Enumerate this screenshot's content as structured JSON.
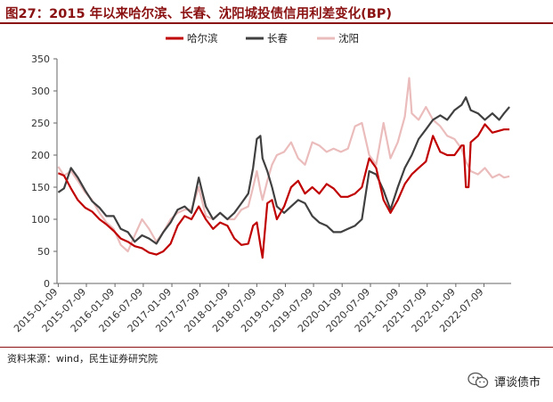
{
  "header": {
    "title": "图27：2015 年以来哈尔滨、长春、沈阳城投债信用利差变化(BP)"
  },
  "footer": {
    "source": "资料来源：wind，民生证券研究院",
    "watermark": "谭谈债市"
  },
  "chart_data": {
    "type": "line",
    "title": "图27：2015 年以来哈尔滨、长春、沈阳城投债信用利差变化(BP)",
    "ylim": [
      0,
      350
    ],
    "yticks": [
      0,
      50,
      100,
      150,
      200,
      250,
      300,
      350
    ],
    "xlim": [
      "2015-01-01",
      "2022-12-31"
    ],
    "xtick_labels": [
      "2015-01-09",
      "2015-07-09",
      "2016-01-09",
      "2016-07-09",
      "2017-01-09",
      "2017-07-09",
      "2018-01-09",
      "2018-07-09",
      "2019-01-09",
      "2019-07-09",
      "2020-01-09",
      "2020-07-09",
      "2021-01-09",
      "2021-07-09",
      "2022-01-09",
      "2022-07-09"
    ],
    "legend_position": "top",
    "grid": false,
    "series": [
      {
        "name": "哈尔滨",
        "color": "#c00000",
        "points": [
          [
            "2015-01-09",
            172
          ],
          [
            "2015-02-15",
            168
          ],
          [
            "2015-04-01",
            148
          ],
          [
            "2015-05-15",
            130
          ],
          [
            "2015-07-01",
            118
          ],
          [
            "2015-08-15",
            112
          ],
          [
            "2015-10-01",
            100
          ],
          [
            "2015-11-15",
            92
          ],
          [
            "2016-01-01",
            82
          ],
          [
            "2016-02-15",
            70
          ],
          [
            "2016-04-01",
            65
          ],
          [
            "2016-05-15",
            58
          ],
          [
            "2016-07-01",
            55
          ],
          [
            "2016-08-15",
            48
          ],
          [
            "2016-10-01",
            45
          ],
          [
            "2016-11-15",
            50
          ],
          [
            "2017-01-01",
            62
          ],
          [
            "2017-02-15",
            90
          ],
          [
            "2017-04-01",
            105
          ],
          [
            "2017-05-15",
            100
          ],
          [
            "2017-07-01",
            120
          ],
          [
            "2017-08-15",
            100
          ],
          [
            "2017-10-01",
            85
          ],
          [
            "2017-11-15",
            95
          ],
          [
            "2018-01-01",
            90
          ],
          [
            "2018-02-15",
            70
          ],
          [
            "2018-04-01",
            60
          ],
          [
            "2018-05-15",
            62
          ],
          [
            "2018-06-15",
            90
          ],
          [
            "2018-07-09",
            95
          ],
          [
            "2018-08-01",
            60
          ],
          [
            "2018-08-15",
            40
          ],
          [
            "2018-09-15",
            125
          ],
          [
            "2018-10-15",
            130
          ],
          [
            "2018-11-15",
            100
          ],
          [
            "2019-01-01",
            120
          ],
          [
            "2019-02-15",
            150
          ],
          [
            "2019-04-01",
            160
          ],
          [
            "2019-05-15",
            140
          ],
          [
            "2019-07-01",
            150
          ],
          [
            "2019-08-15",
            140
          ],
          [
            "2019-10-01",
            155
          ],
          [
            "2019-11-15",
            148
          ],
          [
            "2020-01-01",
            135
          ],
          [
            "2020-02-15",
            135
          ],
          [
            "2020-04-01",
            140
          ],
          [
            "2020-05-15",
            150
          ],
          [
            "2020-07-01",
            195
          ],
          [
            "2020-08-15",
            180
          ],
          [
            "2020-10-01",
            130
          ],
          [
            "2020-11-15",
            110
          ],
          [
            "2021-01-01",
            130
          ],
          [
            "2021-02-15",
            155
          ],
          [
            "2021-04-01",
            170
          ],
          [
            "2021-05-15",
            180
          ],
          [
            "2021-07-01",
            190
          ],
          [
            "2021-08-15",
            230
          ],
          [
            "2021-10-01",
            205
          ],
          [
            "2021-11-15",
            200
          ],
          [
            "2022-01-01",
            200
          ],
          [
            "2022-02-15",
            215
          ],
          [
            "2022-03-01",
            215
          ],
          [
            "2022-03-15",
            150
          ],
          [
            "2022-04-01",
            150
          ],
          [
            "2022-04-15",
            220
          ],
          [
            "2022-06-01",
            230
          ],
          [
            "2022-07-15",
            248
          ],
          [
            "2022-09-01",
            235
          ],
          [
            "2022-11-15",
            240
          ],
          [
            "2022-12-20",
            240
          ]
        ]
      },
      {
        "name": "长春",
        "color": "#404040",
        "points": [
          [
            "2015-01-09",
            142
          ],
          [
            "2015-02-15",
            148
          ],
          [
            "2015-04-01",
            180
          ],
          [
            "2015-05-15",
            165
          ],
          [
            "2015-07-01",
            145
          ],
          [
            "2015-08-15",
            128
          ],
          [
            "2015-10-01",
            118
          ],
          [
            "2015-11-15",
            105
          ],
          [
            "2016-01-01",
            105
          ],
          [
            "2016-02-15",
            85
          ],
          [
            "2016-04-01",
            80
          ],
          [
            "2016-05-15",
            65
          ],
          [
            "2016-07-01",
            75
          ],
          [
            "2016-08-15",
            70
          ],
          [
            "2016-10-01",
            62
          ],
          [
            "2016-11-15",
            80
          ],
          [
            "2017-01-01",
            95
          ],
          [
            "2017-02-15",
            115
          ],
          [
            "2017-04-01",
            120
          ],
          [
            "2017-05-15",
            110
          ],
          [
            "2017-07-01",
            165
          ],
          [
            "2017-08-15",
            120
          ],
          [
            "2017-10-01",
            100
          ],
          [
            "2017-11-15",
            110
          ],
          [
            "2018-01-01",
            100
          ],
          [
            "2018-02-15",
            110
          ],
          [
            "2018-04-01",
            125
          ],
          [
            "2018-05-15",
            140
          ],
          [
            "2018-06-15",
            180
          ],
          [
            "2018-07-09",
            225
          ],
          [
            "2018-08-01",
            230
          ],
          [
            "2018-08-15",
            195
          ],
          [
            "2018-09-15",
            175
          ],
          [
            "2018-10-15",
            150
          ],
          [
            "2018-11-15",
            120
          ],
          [
            "2019-01-01",
            110
          ],
          [
            "2019-02-15",
            120
          ],
          [
            "2019-04-01",
            130
          ],
          [
            "2019-05-15",
            125
          ],
          [
            "2019-07-01",
            105
          ],
          [
            "2019-08-15",
            95
          ],
          [
            "2019-10-01",
            90
          ],
          [
            "2019-11-15",
            80
          ],
          [
            "2020-01-01",
            80
          ],
          [
            "2020-02-15",
            85
          ],
          [
            "2020-04-01",
            90
          ],
          [
            "2020-05-15",
            100
          ],
          [
            "2020-07-01",
            175
          ],
          [
            "2020-08-15",
            170
          ],
          [
            "2020-10-01",
            145
          ],
          [
            "2020-11-15",
            115
          ],
          [
            "2021-01-01",
            150
          ],
          [
            "2021-02-15",
            180
          ],
          [
            "2021-04-01",
            200
          ],
          [
            "2021-05-15",
            225
          ],
          [
            "2021-07-01",
            240
          ],
          [
            "2021-08-15",
            255
          ],
          [
            "2021-10-01",
            262
          ],
          [
            "2021-11-15",
            255
          ],
          [
            "2022-01-01",
            270
          ],
          [
            "2022-02-15",
            278
          ],
          [
            "2022-03-15",
            290
          ],
          [
            "2022-04-15",
            270
          ],
          [
            "2022-06-01",
            265
          ],
          [
            "2022-07-15",
            255
          ],
          [
            "2022-09-01",
            265
          ],
          [
            "2022-10-15",
            255
          ],
          [
            "2022-11-15",
            265
          ],
          [
            "2022-12-20",
            275
          ]
        ]
      },
      {
        "name": "沈阳",
        "color": "#ebbcbc",
        "points": [
          [
            "2015-01-09",
            182
          ],
          [
            "2015-02-15",
            168
          ],
          [
            "2015-04-01",
            175
          ],
          [
            "2015-05-15",
            160
          ],
          [
            "2015-07-01",
            142
          ],
          [
            "2015-08-15",
            130
          ],
          [
            "2015-10-01",
            110
          ],
          [
            "2015-11-15",
            95
          ],
          [
            "2016-01-01",
            85
          ],
          [
            "2016-02-15",
            60
          ],
          [
            "2016-04-01",
            50
          ],
          [
            "2016-05-15",
            75
          ],
          [
            "2016-07-01",
            100
          ],
          [
            "2016-08-15",
            85
          ],
          [
            "2016-10-01",
            65
          ],
          [
            "2016-11-15",
            80
          ],
          [
            "2017-01-01",
            100
          ],
          [
            "2017-02-15",
            110
          ],
          [
            "2017-04-01",
            115
          ],
          [
            "2017-05-15",
            115
          ],
          [
            "2017-07-01",
            150
          ],
          [
            "2017-08-15",
            105
          ],
          [
            "2017-10-01",
            100
          ],
          [
            "2017-11-15",
            110
          ],
          [
            "2018-01-01",
            100
          ],
          [
            "2018-02-15",
            100
          ],
          [
            "2018-04-01",
            115
          ],
          [
            "2018-05-15",
            120
          ],
          [
            "2018-06-15",
            150
          ],
          [
            "2018-07-09",
            175
          ],
          [
            "2018-08-01",
            145
          ],
          [
            "2018-08-15",
            130
          ],
          [
            "2018-09-15",
            160
          ],
          [
            "2018-10-15",
            185
          ],
          [
            "2018-11-15",
            200
          ],
          [
            "2019-01-01",
            205
          ],
          [
            "2019-02-15",
            220
          ],
          [
            "2019-04-01",
            195
          ],
          [
            "2019-05-15",
            185
          ],
          [
            "2019-07-01",
            220
          ],
          [
            "2019-08-15",
            215
          ],
          [
            "2019-10-01",
            205
          ],
          [
            "2019-11-15",
            210
          ],
          [
            "2020-01-01",
            205
          ],
          [
            "2020-02-15",
            210
          ],
          [
            "2020-04-01",
            245
          ],
          [
            "2020-05-15",
            250
          ],
          [
            "2020-07-01",
            200
          ],
          [
            "2020-08-15",
            185
          ],
          [
            "2020-10-01",
            250
          ],
          [
            "2020-11-15",
            195
          ],
          [
            "2021-01-01",
            220
          ],
          [
            "2021-02-15",
            260
          ],
          [
            "2021-03-15",
            320
          ],
          [
            "2021-04-01",
            265
          ],
          [
            "2021-05-15",
            255
          ],
          [
            "2021-07-01",
            275
          ],
          [
            "2021-08-15",
            255
          ],
          [
            "2021-10-01",
            245
          ],
          [
            "2021-11-15",
            230
          ],
          [
            "2022-01-01",
            225
          ],
          [
            "2022-02-15",
            210
          ],
          [
            "2022-03-15",
            190
          ],
          [
            "2022-04-15",
            175
          ],
          [
            "2022-06-01",
            170
          ],
          [
            "2022-07-15",
            180
          ],
          [
            "2022-09-01",
            165
          ],
          [
            "2022-10-15",
            170
          ],
          [
            "2022-11-15",
            165
          ],
          [
            "2022-12-20",
            167
          ]
        ]
      }
    ]
  }
}
